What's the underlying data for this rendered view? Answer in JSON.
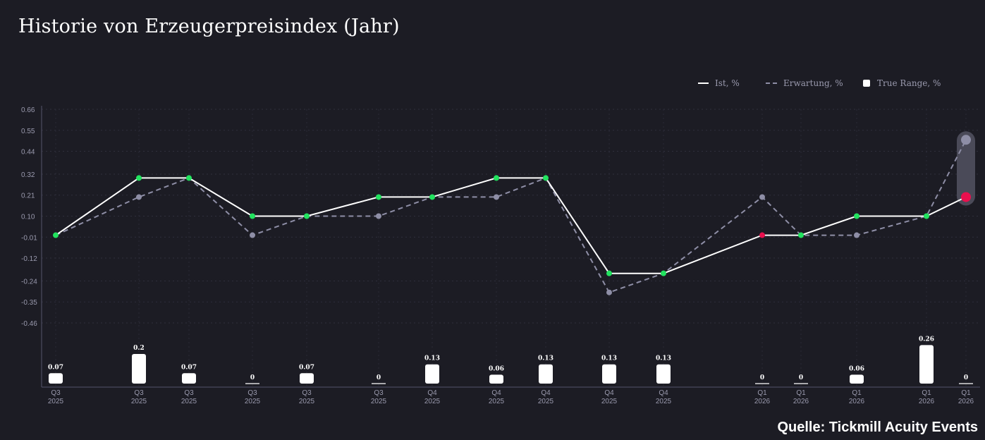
{
  "title": "Historie von Erzeugerpreisindex (Jahr)",
  "source": "Quelle: Tickmill Acuity Events",
  "legend": {
    "actual": "Ist, %",
    "expected": "Erwartung, %",
    "range": "True Range, %"
  },
  "colors": {
    "background": "#1c1c24",
    "actual_line": "#ffffff",
    "expected_line": "#8e8ea6",
    "beat": "#22e35f",
    "miss": "#e8104e",
    "bar": "#ffffff",
    "range_capsule": "#4a4a58"
  },
  "chart_data": {
    "type": "line",
    "y_ticks": [
      "0.66",
      "0.55",
      "0.44",
      "0.32",
      "0.21",
      "0.10",
      "-0.01",
      "-0.12",
      "-0.24",
      "-0.35",
      "-0.46"
    ],
    "ylim": [
      -0.46,
      0.66
    ],
    "grid": true,
    "legend_position": "top-right",
    "categories": [
      {
        "q": "Q3",
        "y": "2025"
      },
      {
        "q": "Q3",
        "y": "2025"
      },
      {
        "q": "Q3",
        "y": "2025"
      },
      {
        "q": "Q3",
        "y": "2025"
      },
      {
        "q": "Q3",
        "y": "2025"
      },
      {
        "q": "Q3",
        "y": "2025"
      },
      {
        "q": "Q4",
        "y": "2025"
      },
      {
        "q": "Q4",
        "y": "2025"
      },
      {
        "q": "Q4",
        "y": "2025"
      },
      {
        "q": "Q4",
        "y": "2025"
      },
      {
        "q": "Q4",
        "y": "2025"
      },
      {
        "q": "Q1",
        "y": "2026"
      },
      {
        "q": "Q1",
        "y": "2026"
      },
      {
        "q": "Q1",
        "y": "2026"
      },
      {
        "q": "Q1",
        "y": "2026"
      },
      {
        "q": "Q1",
        "y": "2026"
      }
    ],
    "series": [
      {
        "name": "Ist, %",
        "values": [
          0.0,
          0.3,
          0.3,
          0.1,
          0.1,
          0.2,
          0.2,
          0.3,
          0.3,
          -0.2,
          -0.2,
          0.0,
          0.0,
          0.1,
          0.1,
          0.2
        ]
      },
      {
        "name": "Erwartung, %",
        "values": [
          0.0,
          0.2,
          0.3,
          0.0,
          0.1,
          0.1,
          0.2,
          0.2,
          0.3,
          -0.3,
          -0.2,
          0.2,
          0.0,
          0.0,
          0.1,
          0.5
        ]
      }
    ],
    "point_status": [
      "beat",
      "beat",
      "beat",
      "beat",
      "beat",
      "beat",
      "beat",
      "beat",
      "beat",
      "beat",
      "beat",
      "miss",
      "beat",
      "beat",
      "beat",
      "miss"
    ],
    "true_range": {
      "name": "True Range, %",
      "values": [
        0.07,
        0.2,
        0.07,
        0,
        0.07,
        0,
        0.13,
        0.06,
        0.13,
        0.13,
        0.13,
        0,
        0,
        0.06,
        0.26,
        0
      ],
      "labels": [
        "0.07",
        "0.2",
        "0.07",
        "0",
        "0.07",
        "0",
        "0.13",
        "0.06",
        "0.13",
        "0.13",
        "0.13",
        "0",
        "0",
        "0.06",
        "0.26",
        "0"
      ]
    }
  }
}
